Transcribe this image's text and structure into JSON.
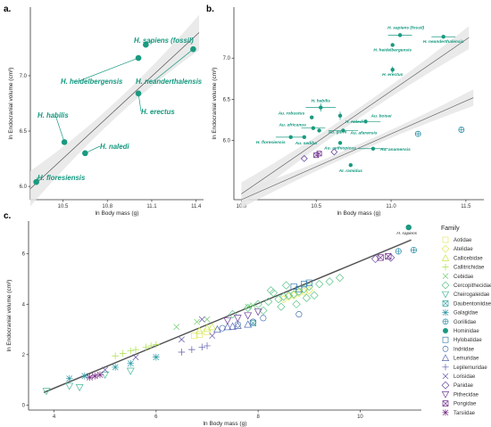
{
  "colors": {
    "hominid": "#1a9a80",
    "band": "#e6e6e6",
    "fit": "#555555",
    "axis": "#333333"
  },
  "chart_data": [
    {
      "panel_label": "a.",
      "type": "scatter",
      "xlabel": "ln Body mass (g)",
      "ylabel": "ln Endocranial volume (cm³)",
      "xlim": [
        10.28,
        11.45
      ],
      "ylim": [
        5.88,
        7.62
      ],
      "xticks": [
        10.5,
        10.8,
        11.1,
        11.4
      ],
      "yticks": [
        6.0,
        6.5,
        7.0
      ],
      "points": [
        {
          "label": "H. sapiens (fossil)",
          "x": 11.06,
          "y": 7.28
        },
        {
          "label": "H. heidelbergensis",
          "x": 11.01,
          "y": 7.16
        },
        {
          "label": "H. neanderthalensis",
          "x": 11.38,
          "y": 7.24
        },
        {
          "label": "H. erectus",
          "x": 11.01,
          "y": 6.84
        },
        {
          "label": "H. habilis",
          "x": 10.51,
          "y": 6.4
        },
        {
          "label": "H. naledi",
          "x": 10.65,
          "y": 6.3
        },
        {
          "label": "H. floresiensis",
          "x": 10.32,
          "y": 6.04
        }
      ],
      "fit": {
        "x": [
          10.28,
          11.42
        ],
        "y": [
          5.98,
          7.39
        ]
      }
    },
    {
      "panel_label": "b.",
      "type": "scatter",
      "xlabel": "ln Body mass (g)",
      "ylabel": "ln Endocranial volume (cm³)",
      "xlim": [
        9.95,
        11.62
      ],
      "ylim": [
        5.28,
        7.62
      ],
      "xticks": [
        10.0,
        10.5,
        11.0,
        11.5
      ],
      "yticks": [
        6.0,
        6.5,
        7.0
      ],
      "points": [
        {
          "label": "H. sapiens (fossil)",
          "x": 11.06,
          "y": 7.28,
          "xerr": 0.08
        },
        {
          "label": "H. neanderthalensis",
          "x": 11.35,
          "y": 7.26,
          "xerr": 0.08
        },
        {
          "label": "H. heidelbergensis",
          "x": 11.01,
          "y": 7.16
        },
        {
          "label": "H. erectus",
          "x": 11.01,
          "y": 6.86,
          "yerr": 0.04
        },
        {
          "label": "H. habilis",
          "x": 10.53,
          "y": 6.4,
          "xerr": 0.1,
          "yerr": 0.05
        },
        {
          "label": "Au. robustus",
          "x": 10.47,
          "y": 6.28
        },
        {
          "label": "H. naledi",
          "x": 10.66,
          "y": 6.3,
          "yerr": 0.05
        },
        {
          "label": "Au. boisei",
          "x": 10.83,
          "y": 6.23,
          "xerr": 0.1
        },
        {
          "label": "Au. africanus",
          "x": 10.48,
          "y": 6.15,
          "xerr": 0.08
        },
        {
          "label": "Au. garhi",
          "x": 10.52,
          "y": 6.12
        },
        {
          "label": "Au. afarensis",
          "x": 10.68,
          "y": 6.12,
          "xerr": 0.1
        },
        {
          "label": "H. floresiensis",
          "x": 10.33,
          "y": 6.04,
          "xerr": 0.1
        },
        {
          "label": "Au. sediba",
          "x": 10.42,
          "y": 6.04
        },
        {
          "label": "Au. aethiopicus",
          "x": 10.66,
          "y": 5.97
        },
        {
          "label": "Au. anamensis",
          "x": 10.88,
          "y": 5.9,
          "xerr": 0.1
        },
        {
          "label": "Ar. ramidus",
          "x": 10.73,
          "y": 5.7
        }
      ],
      "other_points": [
        {
          "family": "Pongidae",
          "x": 10.5,
          "y": 5.82
        },
        {
          "family": "Pongidae",
          "x": 10.52,
          "y": 5.84
        },
        {
          "family": "Panidae",
          "x": 10.42,
          "y": 5.78
        },
        {
          "family": "Panidae",
          "x": 10.62,
          "y": 5.86
        },
        {
          "family": "Gorillidae",
          "x": 11.18,
          "y": 6.08
        },
        {
          "family": "Gorillidae",
          "x": 11.47,
          "y": 6.13
        }
      ],
      "fits": [
        {
          "x": [
            10.0,
            11.52
          ],
          "y": [
            5.35,
            7.25
          ]
        },
        {
          "x": [
            10.0,
            11.55
          ],
          "y": [
            5.28,
            6.52
          ]
        }
      ]
    },
    {
      "panel_label": "c.",
      "type": "scatter",
      "xlabel": "ln Body mass (g)",
      "ylabel": "ln Endocranial volume (cm³)",
      "xlim": [
        3.5,
        11.2
      ],
      "ylim": [
        -0.2,
        7.3
      ],
      "xticks": [
        4,
        6,
        8,
        10
      ],
      "yticks": [
        0,
        2,
        4,
        6
      ],
      "annotation": {
        "label": "H. sapiens",
        "x": 10.95,
        "y": 7.05
      },
      "fit": {
        "x": [
          3.8,
          11.0
        ],
        "y": [
          0.5,
          6.55
        ]
      },
      "legend_title": "Family",
      "legend_position": "right",
      "series": [
        {
          "name": "Aotidae",
          "color": "#e8e86a",
          "shape": "square",
          "points": [
            [
              6.75,
              2.75
            ],
            [
              6.85,
              2.8
            ],
            [
              7.0,
              2.9
            ]
          ]
        },
        {
          "name": "Atelidae",
          "color": "#e3e85a",
          "shape": "diamond",
          "points": [
            [
              8.5,
              4.2
            ],
            [
              8.7,
              4.35
            ],
            [
              8.9,
              4.5
            ],
            [
              8.8,
              4.45
            ],
            [
              9.0,
              4.55
            ],
            [
              8.6,
              4.3
            ]
          ]
        },
        {
          "name": "Callicebidae",
          "color": "#c9e64a",
          "shape": "triangle",
          "points": [
            [
              6.85,
              2.95
            ],
            [
              7.0,
              3.05
            ],
            [
              7.1,
              3.1
            ]
          ]
        },
        {
          "name": "Callitrichidae",
          "color": "#a8e046",
          "shape": "plus",
          "points": [
            [
              5.2,
              1.95
            ],
            [
              5.35,
              2.05
            ],
            [
              5.5,
              2.15
            ],
            [
              5.8,
              2.3
            ],
            [
              5.9,
              2.35
            ],
            [
              6.0,
              2.4
            ],
            [
              5.6,
              2.2
            ]
          ]
        },
        {
          "name": "Cebidae",
          "color": "#6ccf6a",
          "shape": "cross",
          "points": [
            [
              6.4,
              3.1
            ],
            [
              6.8,
              3.3
            ],
            [
              7.0,
              3.4
            ],
            [
              7.8,
              3.9
            ],
            [
              7.9,
              3.95
            ]
          ]
        },
        {
          "name": "Cercopithecidae",
          "color": "#5cc48a",
          "shape": "diamond",
          "points": [
            [
              7.5,
              3.6
            ],
            [
              7.8,
              3.85
            ],
            [
              8.0,
              4.0
            ],
            [
              8.2,
              4.1
            ],
            [
              8.4,
              4.2
            ],
            [
              8.5,
              4.3
            ],
            [
              8.6,
              4.35
            ],
            [
              8.7,
              4.4
            ],
            [
              8.8,
              4.5
            ],
            [
              8.9,
              4.6
            ],
            [
              9.0,
              4.7
            ],
            [
              9.2,
              4.8
            ],
            [
              9.4,
              4.9
            ],
            [
              9.6,
              5.05
            ],
            [
              8.3,
              4.45
            ],
            [
              8.1,
              3.75
            ],
            [
              8.45,
              3.9
            ],
            [
              8.75,
              4.0
            ],
            [
              8.95,
              4.25
            ],
            [
              9.1,
              4.35
            ],
            [
              8.55,
              4.75
            ],
            [
              8.25,
              4.55
            ]
          ]
        },
        {
          "name": "Cheirogaleidae",
          "color": "#48b89a",
          "shape": "tri-down",
          "points": [
            [
              3.85,
              0.55
            ],
            [
              4.3,
              0.75
            ],
            [
              4.5,
              0.7
            ],
            [
              5.5,
              1.35
            ],
            [
              5.0,
              1.2
            ]
          ]
        },
        {
          "name": "Daubentoniidae",
          "color": "#3aa8a0",
          "shape": "square-x",
          "points": [
            [
              7.9,
              3.25
            ]
          ]
        },
        {
          "name": "Galagidae",
          "color": "#2e9aa6",
          "shape": "asterisk",
          "points": [
            [
              4.3,
              1.05
            ],
            [
              4.6,
              1.15
            ],
            [
              5.2,
              1.5
            ],
            [
              5.5,
              1.65
            ],
            [
              6.0,
              1.9
            ]
          ]
        },
        {
          "name": "Gorillidae",
          "color": "#2c8fa8",
          "shape": "circle-plus",
          "points": [
            [
              10.75,
              6.1
            ],
            [
              11.05,
              6.15
            ]
          ]
        },
        {
          "name": "Hominidae",
          "color": "#1a9a80",
          "shape": "dot",
          "points": [
            [
              10.95,
              7.05
            ]
          ]
        },
        {
          "name": "Hylobatidae",
          "color": "#3b7fb0",
          "shape": "square",
          "points": [
            [
              8.7,
              4.7
            ],
            [
              8.9,
              4.8
            ],
            [
              9.0,
              4.85
            ],
            [
              8.8,
              4.6
            ]
          ]
        },
        {
          "name": "Indriidae",
          "color": "#4a74b4",
          "shape": "circle",
          "points": [
            [
              7.3,
              3.05
            ],
            [
              7.6,
              3.2
            ],
            [
              7.9,
              3.3
            ],
            [
              8.1,
              3.45
            ],
            [
              8.8,
              3.6
            ]
          ]
        },
        {
          "name": "Lemuridae",
          "color": "#5668b4",
          "shape": "triangle",
          "points": [
            [
              7.2,
              3.0
            ],
            [
              7.4,
              3.1
            ],
            [
              7.6,
              3.15
            ],
            [
              7.8,
              3.2
            ],
            [
              7.5,
              3.12
            ]
          ]
        },
        {
          "name": "Lepilemuridae",
          "color": "#5e5cae",
          "shape": "plus",
          "points": [
            [
              6.5,
              2.1
            ],
            [
              6.7,
              2.2
            ],
            [
              6.9,
              2.3
            ],
            [
              7.0,
              2.35
            ]
          ]
        },
        {
          "name": "Lorisidae",
          "color": "#6452a6",
          "shape": "cross",
          "points": [
            [
              5.0,
              1.4
            ],
            [
              5.6,
              1.9
            ],
            [
              6.5,
              2.6
            ],
            [
              7.1,
              2.75
            ],
            [
              6.9,
              3.4
            ]
          ]
        },
        {
          "name": "Panidae",
          "color": "#6a48a0",
          "shape": "diamond",
          "points": [
            [
              10.3,
              5.8
            ],
            [
              10.6,
              5.85
            ]
          ]
        },
        {
          "name": "Pithecidae",
          "color": "#6e3e98",
          "shape": "tri-down",
          "points": [
            [
              7.4,
              3.35
            ],
            [
              7.6,
              3.45
            ],
            [
              7.8,
              3.55
            ],
            [
              8.0,
              3.7
            ]
          ]
        },
        {
          "name": "Pongidae",
          "color": "#72348e",
          "shape": "square-x",
          "points": [
            [
              10.4,
              5.85
            ],
            [
              10.55,
              5.9
            ]
          ]
        },
        {
          "name": "Tarsiidae",
          "color": "#762a84",
          "shape": "asterisk",
          "points": [
            [
              4.7,
              1.1
            ],
            [
              4.8,
              1.15
            ],
            [
              4.9,
              1.2
            ]
          ]
        }
      ]
    }
  ]
}
